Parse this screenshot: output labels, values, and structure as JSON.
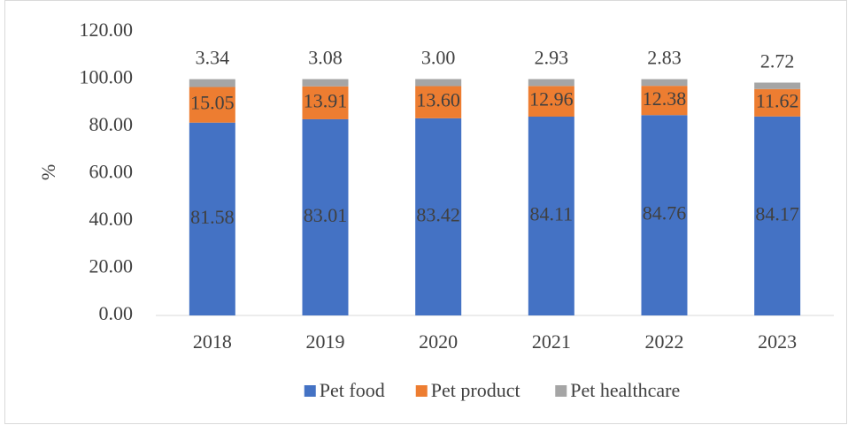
{
  "chart_data": {
    "type": "stacked_bar",
    "y_label": "%",
    "categories": [
      "2018",
      "2019",
      "2020",
      "2021",
      "2022",
      "2023"
    ],
    "series": [
      {
        "name": "Pet food",
        "color": "#4472c4",
        "values": [
          81.58,
          83.01,
          83.42,
          84.11,
          84.76,
          84.17
        ]
      },
      {
        "name": "Pet product",
        "color": "#ed7d31",
        "values": [
          15.05,
          13.91,
          13.6,
          12.96,
          12.38,
          11.62
        ],
        "value_labels": [
          "15.05",
          "13.91",
          "13.60",
          "12.96",
          "12.38",
          "11.62"
        ]
      },
      {
        "name": "Pet healthcare",
        "color": "#a5a5a5",
        "values": [
          3.34,
          3.08,
          3.0,
          2.93,
          2.83,
          2.72
        ],
        "value_labels": [
          "3.34",
          "3.08",
          "3.00",
          "2.93",
          "2.83",
          "2.72"
        ]
      }
    ],
    "ylim": [
      0,
      120
    ],
    "yticks": [
      {
        "value": 0,
        "label": "0.00"
      },
      {
        "value": 20,
        "label": "20.00"
      },
      {
        "value": 40,
        "label": "40.00"
      },
      {
        "value": 60,
        "label": "60.00"
      },
      {
        "value": 80,
        "label": "80.00"
      },
      {
        "value": 100,
        "label": "100.00"
      },
      {
        "value": 120,
        "label": "120.00"
      }
    ],
    "grid": false,
    "legend": "bottom"
  }
}
